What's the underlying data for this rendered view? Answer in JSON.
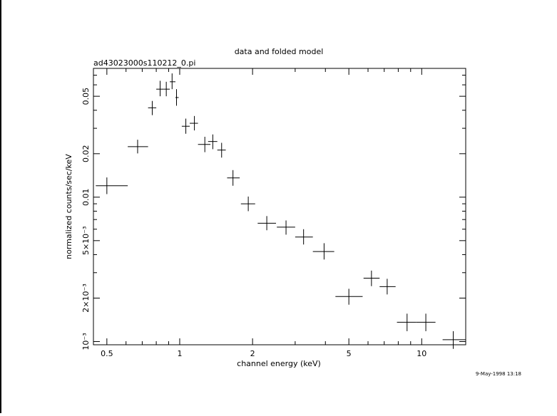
{
  "chart_data": {
    "type": "scatter",
    "title": "data and folded model",
    "subtitle": "ad43023000s110212_0.pi",
    "xlabel": "channel energy (keV)",
    "ylabel": "normalized counts/sec/keV",
    "footer": "9-May-1998 13:18",
    "xscale": "log",
    "yscale": "log",
    "xlim": [
      0.44,
      15.2
    ],
    "ylim": [
      0.00095,
      0.078
    ],
    "grid": false,
    "x_ticks": [
      {
        "value": 0.5,
        "label": "0.5"
      },
      {
        "value": 1,
        "label": "1"
      },
      {
        "value": 2,
        "label": "2"
      },
      {
        "value": 5,
        "label": "5"
      },
      {
        "value": 10,
        "label": "10"
      }
    ],
    "y_ticks": [
      {
        "value": 0.001,
        "label": "10⁻³"
      },
      {
        "value": 0.002,
        "label": "2×10⁻³"
      },
      {
        "value": 0.005,
        "label": "5×10⁻³"
      },
      {
        "value": 0.01,
        "label": "0.01"
      },
      {
        "value": 0.02,
        "label": "0.02"
      },
      {
        "value": 0.05,
        "label": "0.05"
      }
    ],
    "series": [
      {
        "points": [
          {
            "x": 0.5,
            "xlo": 0.45,
            "xhi": 0.61,
            "y": 0.012,
            "ylo": 0.0105,
            "yhi": 0.0137
          },
          {
            "x": 0.67,
            "xlo": 0.61,
            "xhi": 0.74,
            "y": 0.0224,
            "ylo": 0.0201,
            "yhi": 0.025
          },
          {
            "x": 0.77,
            "xlo": 0.74,
            "xhi": 0.8,
            "y": 0.0416,
            "ylo": 0.037,
            "yhi": 0.0464
          },
          {
            "x": 0.83,
            "xlo": 0.8,
            "xhi": 0.86,
            "y": 0.056,
            "ylo": 0.05,
            "yhi": 0.064
          },
          {
            "x": 0.88,
            "xlo": 0.86,
            "xhi": 0.91,
            "y": 0.056,
            "ylo": 0.05,
            "yhi": 0.063
          },
          {
            "x": 0.93,
            "xlo": 0.91,
            "xhi": 0.96,
            "y": 0.063,
            "ylo": 0.056,
            "yhi": 0.072
          },
          {
            "x": 0.97,
            "xlo": 0.96,
            "xhi": 0.99,
            "y": 0.049,
            "ylo": 0.043,
            "yhi": 0.056
          },
          {
            "x": 1.06,
            "xlo": 1.02,
            "xhi": 1.1,
            "y": 0.031,
            "ylo": 0.0275,
            "yhi": 0.035
          },
          {
            "x": 1.15,
            "xlo": 1.1,
            "xhi": 1.19,
            "y": 0.0325,
            "ylo": 0.029,
            "yhi": 0.0365
          },
          {
            "x": 1.27,
            "xlo": 1.19,
            "xhi": 1.34,
            "y": 0.0232,
            "ylo": 0.0205,
            "yhi": 0.0262
          },
          {
            "x": 1.37,
            "xlo": 1.31,
            "xhi": 1.43,
            "y": 0.0243,
            "ylo": 0.0215,
            "yhi": 0.0272
          },
          {
            "x": 1.49,
            "xlo": 1.43,
            "xhi": 1.55,
            "y": 0.0212,
            "ylo": 0.0188,
            "yhi": 0.0238
          },
          {
            "x": 1.66,
            "xlo": 1.57,
            "xhi": 1.77,
            "y": 0.0136,
            "ylo": 0.012,
            "yhi": 0.0154
          },
          {
            "x": 1.92,
            "xlo": 1.79,
            "xhi": 2.05,
            "y": 0.009,
            "ylo": 0.008,
            "yhi": 0.0101
          },
          {
            "x": 2.29,
            "xlo": 2.1,
            "xhi": 2.5,
            "y": 0.0066,
            "ylo": 0.0059,
            "yhi": 0.0074
          },
          {
            "x": 2.75,
            "xlo": 2.52,
            "xhi": 3.0,
            "y": 0.0062,
            "ylo": 0.0055,
            "yhi": 0.0069
          },
          {
            "x": 3.25,
            "xlo": 3.0,
            "xhi": 3.55,
            "y": 0.0053,
            "ylo": 0.0047,
            "yhi": 0.006
          },
          {
            "x": 3.95,
            "xlo": 3.55,
            "xhi": 4.35,
            "y": 0.0042,
            "ylo": 0.0037,
            "yhi": 0.0048
          },
          {
            "x": 5.0,
            "xlo": 4.4,
            "xhi": 5.7,
            "y": 0.00205,
            "ylo": 0.0018,
            "yhi": 0.00232
          },
          {
            "x": 6.2,
            "xlo": 5.75,
            "xhi": 6.7,
            "y": 0.00275,
            "ylo": 0.00242,
            "yhi": 0.0031
          },
          {
            "x": 7.2,
            "xlo": 6.7,
            "xhi": 7.8,
            "y": 0.0024,
            "ylo": 0.00212,
            "yhi": 0.00272
          },
          {
            "x": 8.7,
            "xlo": 7.9,
            "xhi": 9.5,
            "y": 0.00136,
            "ylo": 0.00118,
            "yhi": 0.00156
          },
          {
            "x": 10.4,
            "xlo": 9.5,
            "xhi": 11.4,
            "y": 0.00136,
            "ylo": 0.00118,
            "yhi": 0.00156
          },
          {
            "x": 13.5,
            "xlo": 12.2,
            "xhi": 15.2,
            "y": 0.00103,
            "ylo": 0.00089,
            "yhi": 0.00118
          }
        ]
      }
    ]
  }
}
